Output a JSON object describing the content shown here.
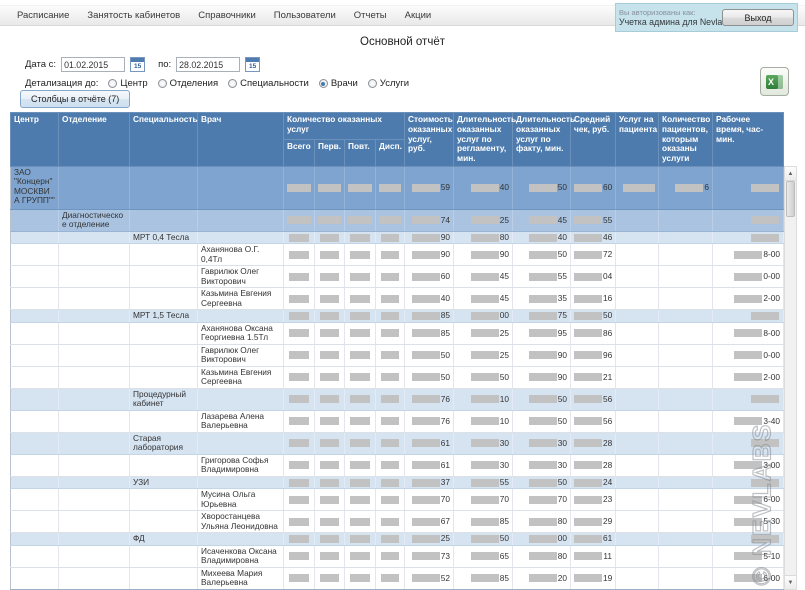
{
  "menu": {
    "items": [
      "Расписание",
      "Занятость кабинетов",
      "Справочники",
      "Пользователи",
      "Отчеты",
      "Акции"
    ]
  },
  "auth": {
    "label": "Вы авторизованы как:",
    "user": "Учетка админа для Nevlabs",
    "logout_label": "Выход"
  },
  "title": "Основной отчёт",
  "filters": {
    "date_from_label": "Дата с:",
    "date_from": "01.02.2015",
    "date_to_label": "по:",
    "date_to": "28.02.2015",
    "detail_label": "Детализация до:",
    "detail_options": [
      {
        "label": "Центр",
        "selected": false
      },
      {
        "label": "Отделения",
        "selected": false
      },
      {
        "label": "Специальности",
        "selected": false
      },
      {
        "label": "Врачи",
        "selected": true
      },
      {
        "label": "Услуги",
        "selected": false
      }
    ],
    "columns_button_label": "Столбцы в отчёте (7)"
  },
  "icons": {
    "excel_glyph": "X",
    "calendar_day": "15",
    "scroll_up": "▲",
    "scroll_down": "▼"
  },
  "table": {
    "headers": [
      "Центр",
      "Отделение",
      "Специальность",
      "Врач"
    ],
    "qty_group_header": "Количество оказанных услуг",
    "qty_subheaders": [
      "Всего",
      "Перв.",
      "Повт.",
      "Дисп."
    ],
    "value_headers": [
      "Стоимость оказанных услуг, руб.",
      "Длительность оказанных услуг по регламенту, мин.",
      "Длительность оказанных услуг по факту, мин.",
      "Средний чек, руб.",
      "Услуг на пациента",
      "Количество пациентов, которым оказаны услуги",
      "Рабочее время, час-мин."
    ],
    "rows": [
      {
        "level": "center",
        "name": "ЗАО \"Концерн\" МОСКВИА ГРУПП\"\"",
        "cost": "59",
        "durReg": "40",
        "durFact": "50",
        "avgCheck": "60",
        "perPatient": "bar",
        "patients": "6",
        "workTime": "bar"
      },
      {
        "level": "department",
        "name": "Диагностическое отделение",
        "cost": "74",
        "durReg": "25",
        "durFact": "45",
        "avgCheck": "55",
        "perPatient": "",
        "patients": "",
        "workTime": "bar"
      },
      {
        "level": "specialty",
        "name": "МРТ 0,4 Тесла",
        "cost": "90",
        "durReg": "80",
        "durFact": "40",
        "avgCheck": "46",
        "perPatient": "",
        "patients": "",
        "workTime": "bar"
      },
      {
        "level": "doctor",
        "name": "Аханянова О.Г. 0,4Тл",
        "cost": "90",
        "durReg": "90",
        "durFact": "50",
        "avgCheck": "72",
        "perPatient": "",
        "patients": "",
        "workTime": "8-00"
      },
      {
        "level": "doctor",
        "name": "Гаврилюк Олег Викторович",
        "cost": "60",
        "durReg": "45",
        "durFact": "55",
        "avgCheck": "04",
        "perPatient": "",
        "patients": "",
        "workTime": "0-00"
      },
      {
        "level": "doctor",
        "name": "Казьмина Евгения Сергеевна",
        "cost": "40",
        "durReg": "45",
        "durFact": "35",
        "avgCheck": "16",
        "perPatient": "",
        "patients": "",
        "workTime": "2-00"
      },
      {
        "level": "specialty",
        "name": "МРТ 1,5 Тесла",
        "cost": "85",
        "durReg": "00",
        "durFact": "75",
        "avgCheck": "50",
        "perPatient": "",
        "patients": "",
        "workTime": "bar"
      },
      {
        "level": "doctor",
        "name": "Аханянова Оксана Георгиевна 1.5Тл",
        "cost": "85",
        "durReg": "25",
        "durFact": "95",
        "avgCheck": "86",
        "perPatient": "",
        "patients": "",
        "workTime": "8-00"
      },
      {
        "level": "doctor",
        "name": "Гаврилюк Олег Викторович",
        "cost": "50",
        "durReg": "25",
        "durFact": "90",
        "avgCheck": "96",
        "perPatient": "",
        "patients": "",
        "workTime": "0-00"
      },
      {
        "level": "doctor",
        "name": "Казьмина Евгения Сергеевна",
        "cost": "50",
        "durReg": "50",
        "durFact": "90",
        "avgCheck": "21",
        "perPatient": "",
        "patients": "",
        "workTime": "2-00"
      },
      {
        "level": "specialty",
        "name": "Процедурный кабинет",
        "cost": "76",
        "durReg": "10",
        "durFact": "50",
        "avgCheck": "56",
        "perPatient": "",
        "patients": "",
        "workTime": "bar"
      },
      {
        "level": "doctor",
        "name": "Лазарева Алена Валерьевна",
        "cost": "76",
        "durReg": "10",
        "durFact": "50",
        "avgCheck": "56",
        "perPatient": "",
        "patients": "",
        "workTime": "3-40"
      },
      {
        "level": "specialty",
        "name": "Старая лаборатория",
        "cost": "61",
        "durReg": "30",
        "durFact": "30",
        "avgCheck": "28",
        "perPatient": "",
        "patients": "",
        "workTime": "bar"
      },
      {
        "level": "doctor",
        "name": "Григорова Софья Владимировна",
        "cost": "61",
        "durReg": "30",
        "durFact": "30",
        "avgCheck": "28",
        "perPatient": "",
        "patients": "",
        "workTime": "3-00"
      },
      {
        "level": "specialty",
        "name": "УЗИ",
        "cost": "37",
        "durReg": "55",
        "durFact": "50",
        "avgCheck": "24",
        "perPatient": "",
        "patients": "",
        "workTime": "bar"
      },
      {
        "level": "doctor",
        "name": "Мусина Ольга Юрьевна",
        "cost": "70",
        "durReg": "70",
        "durFact": "70",
        "avgCheck": "23",
        "perPatient": "",
        "patients": "",
        "workTime": "6-00"
      },
      {
        "level": "doctor",
        "name": "Хворостанцева Ульяна Леонидовна",
        "cost": "67",
        "durReg": "85",
        "durFact": "80",
        "avgCheck": "29",
        "perPatient": "",
        "patients": "",
        "workTime": "5-30"
      },
      {
        "level": "specialty",
        "name": "ФД",
        "cost": "25",
        "durReg": "50",
        "durFact": "00",
        "avgCheck": "61",
        "perPatient": "",
        "patients": "",
        "workTime": "bar"
      },
      {
        "level": "doctor",
        "name": "Исаченкова Оксана Владимировна",
        "cost": "73",
        "durReg": "65",
        "durFact": "80",
        "avgCheck": "11",
        "perPatient": "",
        "patients": "",
        "workTime": "5-10"
      },
      {
        "level": "doctor",
        "name": "Михеева Мария Валерьевна",
        "cost": "52",
        "durReg": "85",
        "durFact": "20",
        "avgCheck": "19",
        "perPatient": "",
        "patients": "",
        "workTime": "6-00"
      }
    ]
  },
  "watermark": "© NEVLABS",
  "colors": {
    "header_blue": "#4d7bae",
    "center_row": "#7ea4cf",
    "department_row": "#a9c3e1",
    "specialty_row": "#d6e3f1",
    "masked_bar": "#c2c2c2",
    "auth_bg": "#c6e3ec",
    "excel_green": "#2f7d37"
  }
}
